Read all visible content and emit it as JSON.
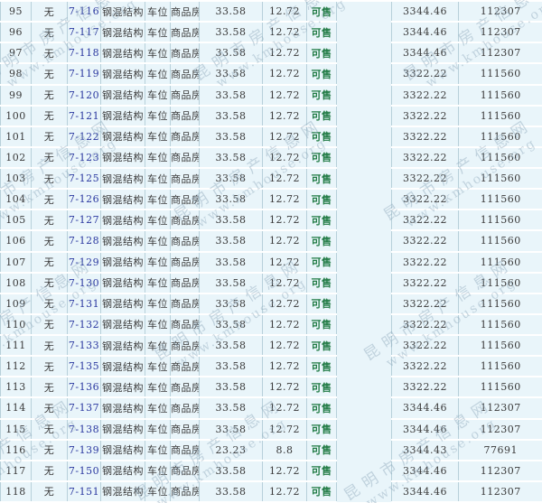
{
  "watermark": {
    "line1": "昆明市房产信息网",
    "line2": "www.kmhouse.org"
  },
  "colors": {
    "row_bg": "#e9f5fa",
    "row_separator": "#ffffff",
    "grid_line": "#b7d0da",
    "link_text": "#2b38a0",
    "status_green": "#1f7a43",
    "body_text": "#3a3a3a",
    "watermark": "#8fa9bc"
  },
  "table": {
    "column_keys": [
      "seq",
      "mortgage",
      "unit",
      "structure",
      "usage",
      "type",
      "area",
      "shared",
      "status",
      "blank",
      "price",
      "total"
    ],
    "rows": [
      {
        "seq": "95",
        "mortgage": "无",
        "unit": "7-116",
        "structure": "钢混结构",
        "usage": "车位",
        "type": "商品房",
        "area": "33.58",
        "shared": "12.72",
        "status": "可售",
        "price": "3344.46",
        "total": "112307"
      },
      {
        "seq": "96",
        "mortgage": "无",
        "unit": "7-117",
        "structure": "钢混结构",
        "usage": "车位",
        "type": "商品房",
        "area": "33.58",
        "shared": "12.72",
        "status": "可售",
        "price": "3344.46",
        "total": "112307"
      },
      {
        "seq": "97",
        "mortgage": "无",
        "unit": "7-118",
        "structure": "钢混结构",
        "usage": "车位",
        "type": "商品房",
        "area": "33.58",
        "shared": "12.72",
        "status": "可售",
        "price": "3344.46",
        "total": "112307"
      },
      {
        "seq": "98",
        "mortgage": "无",
        "unit": "7-119",
        "structure": "钢混结构",
        "usage": "车位",
        "type": "商品房",
        "area": "33.58",
        "shared": "12.72",
        "status": "可售",
        "price": "3322.22",
        "total": "111560"
      },
      {
        "seq": "99",
        "mortgage": "无",
        "unit": "7-120",
        "structure": "钢混结构",
        "usage": "车位",
        "type": "商品房",
        "area": "33.58",
        "shared": "12.72",
        "status": "可售",
        "price": "3322.22",
        "total": "111560"
      },
      {
        "seq": "100",
        "mortgage": "无",
        "unit": "7-121",
        "structure": "钢混结构",
        "usage": "车位",
        "type": "商品房",
        "area": "33.58",
        "shared": "12.72",
        "status": "可售",
        "price": "3322.22",
        "total": "111560"
      },
      {
        "seq": "101",
        "mortgage": "无",
        "unit": "7-122",
        "structure": "钢混结构",
        "usage": "车位",
        "type": "商品房",
        "area": "33.58",
        "shared": "12.72",
        "status": "可售",
        "price": "3322.22",
        "total": "111560"
      },
      {
        "seq": "102",
        "mortgage": "无",
        "unit": "7-123",
        "structure": "钢混结构",
        "usage": "车位",
        "type": "商品房",
        "area": "33.58",
        "shared": "12.72",
        "status": "可售",
        "price": "3322.22",
        "total": "111560"
      },
      {
        "seq": "103",
        "mortgage": "无",
        "unit": "7-125",
        "structure": "钢混结构",
        "usage": "车位",
        "type": "商品房",
        "area": "33.58",
        "shared": "12.72",
        "status": "可售",
        "price": "3322.22",
        "total": "111560"
      },
      {
        "seq": "104",
        "mortgage": "无",
        "unit": "7-126",
        "structure": "钢混结构",
        "usage": "车位",
        "type": "商品房",
        "area": "33.58",
        "shared": "12.72",
        "status": "可售",
        "price": "3322.22",
        "total": "111560"
      },
      {
        "seq": "105",
        "mortgage": "无",
        "unit": "7-127",
        "structure": "钢混结构",
        "usage": "车位",
        "type": "商品房",
        "area": "33.58",
        "shared": "12.72",
        "status": "可售",
        "price": "3322.22",
        "total": "111560"
      },
      {
        "seq": "106",
        "mortgage": "无",
        "unit": "7-128",
        "structure": "钢混结构",
        "usage": "车位",
        "type": "商品房",
        "area": "33.58",
        "shared": "12.72",
        "status": "可售",
        "price": "3322.22",
        "total": "111560"
      },
      {
        "seq": "107",
        "mortgage": "无",
        "unit": "7-129",
        "structure": "钢混结构",
        "usage": "车位",
        "type": "商品房",
        "area": "33.58",
        "shared": "12.72",
        "status": "可售",
        "price": "3322.22",
        "total": "111560"
      },
      {
        "seq": "108",
        "mortgage": "无",
        "unit": "7-130",
        "structure": "钢混结构",
        "usage": "车位",
        "type": "商品房",
        "area": "33.58",
        "shared": "12.72",
        "status": "可售",
        "price": "3322.22",
        "total": "111560"
      },
      {
        "seq": "109",
        "mortgage": "无",
        "unit": "7-131",
        "structure": "钢混结构",
        "usage": "车位",
        "type": "商品房",
        "area": "33.58",
        "shared": "12.72",
        "status": "可售",
        "price": "3322.22",
        "total": "111560"
      },
      {
        "seq": "110",
        "mortgage": "无",
        "unit": "7-132",
        "structure": "钢混结构",
        "usage": "车位",
        "type": "商品房",
        "area": "33.58",
        "shared": "12.72",
        "status": "可售",
        "price": "3322.22",
        "total": "111560"
      },
      {
        "seq": "111",
        "mortgage": "无",
        "unit": "7-133",
        "structure": "钢混结构",
        "usage": "车位",
        "type": "商品房",
        "area": "33.58",
        "shared": "12.72",
        "status": "可售",
        "price": "3322.22",
        "total": "111560"
      },
      {
        "seq": "112",
        "mortgage": "无",
        "unit": "7-135",
        "structure": "钢混结构",
        "usage": "车位",
        "type": "商品房",
        "area": "33.58",
        "shared": "12.72",
        "status": "可售",
        "price": "3322.22",
        "total": "111560"
      },
      {
        "seq": "113",
        "mortgage": "无",
        "unit": "7-136",
        "structure": "钢混结构",
        "usage": "车位",
        "type": "商品房",
        "area": "33.58",
        "shared": "12.72",
        "status": "可售",
        "price": "3322.22",
        "total": "111560"
      },
      {
        "seq": "114",
        "mortgage": "无",
        "unit": "7-137",
        "structure": "钢混结构",
        "usage": "车位",
        "type": "商品房",
        "area": "33.58",
        "shared": "12.72",
        "status": "可售",
        "price": "3344.46",
        "total": "112307"
      },
      {
        "seq": "115",
        "mortgage": "无",
        "unit": "7-138",
        "structure": "钢混结构",
        "usage": "车位",
        "type": "商品房",
        "area": "33.58",
        "shared": "12.72",
        "status": "可售",
        "price": "3344.46",
        "total": "112307"
      },
      {
        "seq": "116",
        "mortgage": "无",
        "unit": "7-139",
        "structure": "钢混结构",
        "usage": "车位",
        "type": "商品房",
        "area": "23.23",
        "shared": "8.8",
        "status": "可售",
        "price": "3344.43",
        "total": "77691"
      },
      {
        "seq": "117",
        "mortgage": "无",
        "unit": "7-150",
        "structure": "钢混结构",
        "usage": "车位",
        "type": "商品房",
        "area": "33.58",
        "shared": "12.72",
        "status": "可售",
        "price": "3344.46",
        "total": "112307"
      },
      {
        "seq": "118",
        "mortgage": "无",
        "unit": "7-151",
        "structure": "钢混结构",
        "usage": "车位",
        "type": "商品房",
        "area": "33.58",
        "shared": "12.72",
        "status": "可售",
        "price": "3344.46",
        "total": "112307"
      }
    ]
  }
}
